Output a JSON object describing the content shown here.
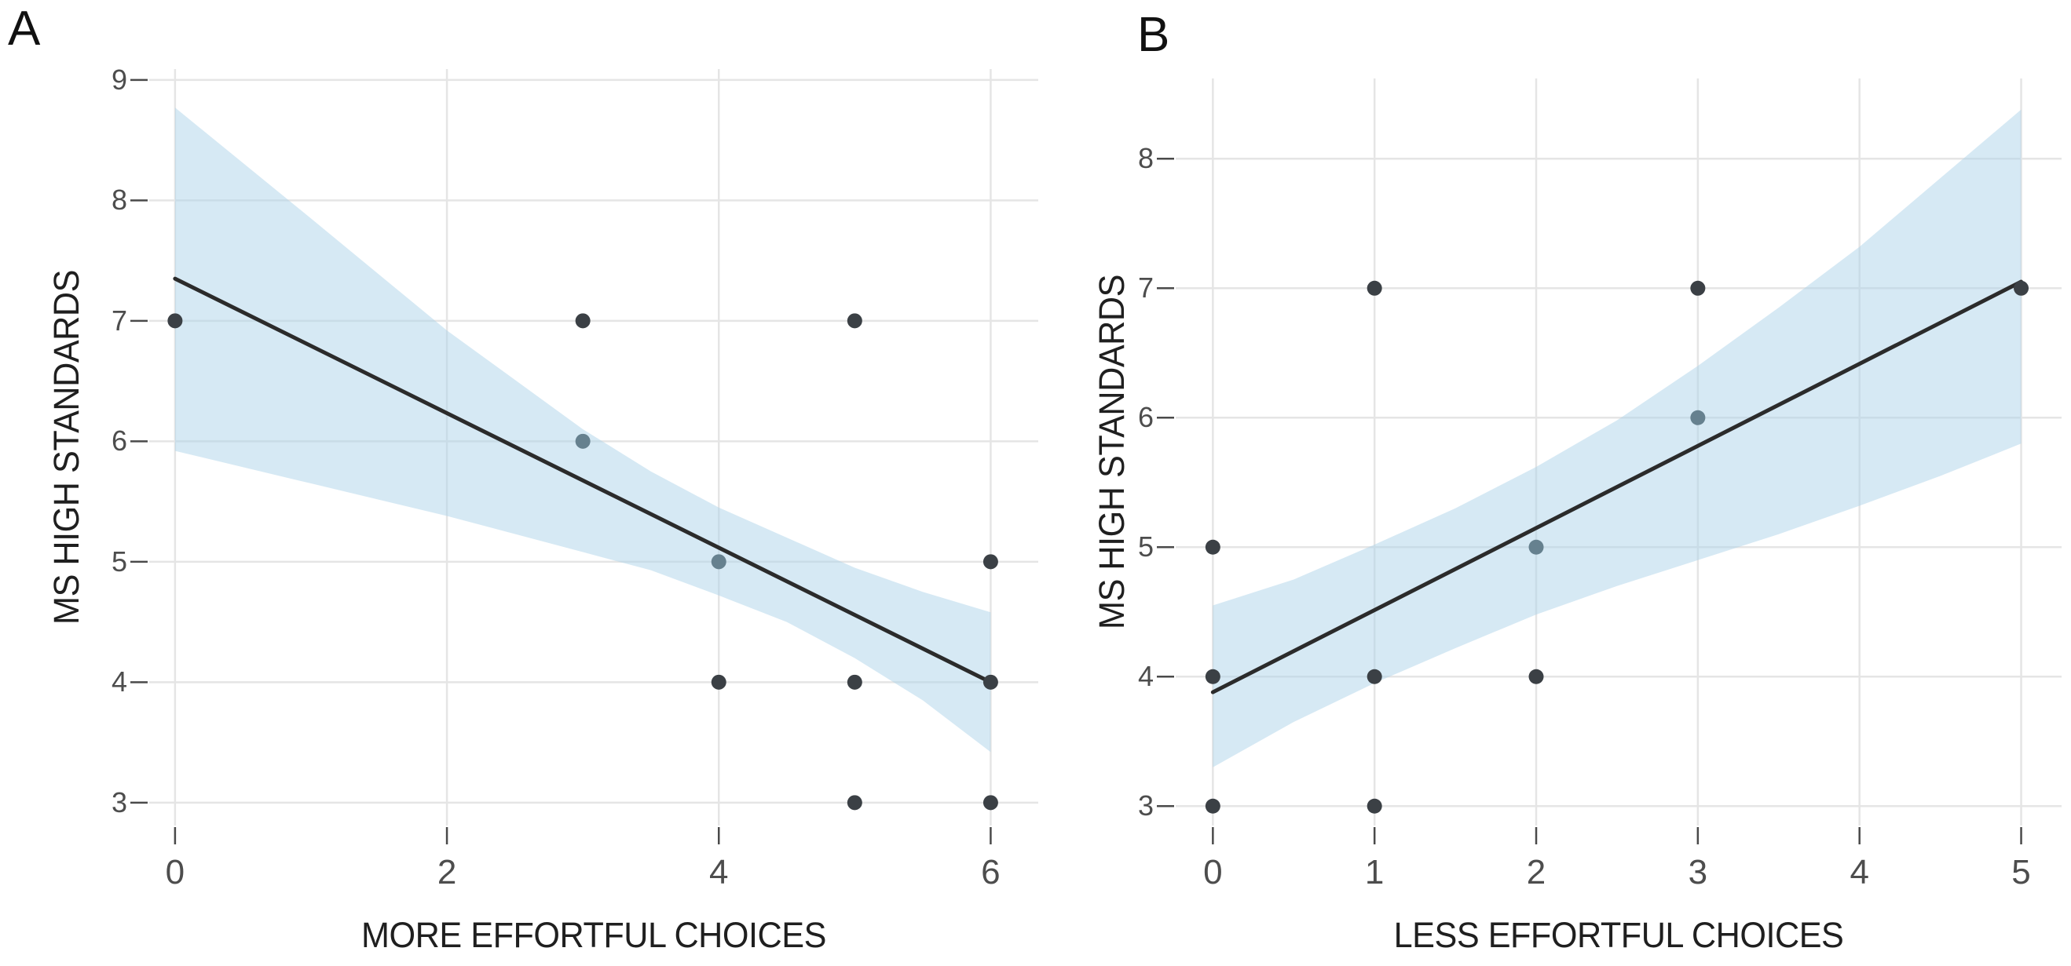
{
  "chart_data": [
    {
      "type": "scatter",
      "panel_label": "A",
      "xlabel": "MORE EFFORTFUL CHOICES",
      "ylabel": "MS HIGH STANDARDS",
      "x_ticks": [
        0,
        2,
        4,
        6
      ],
      "y_ticks": [
        3,
        4,
        5,
        6,
        7,
        8,
        9
      ],
      "xlim": [
        -0.19,
        6.35
      ],
      "ylim": [
        2.81,
        9.09
      ],
      "grid": "major-only",
      "legend_position": "none",
      "points": [
        {
          "x": 0,
          "y": 7,
          "tone": "dark"
        },
        {
          "x": 3,
          "y": 7,
          "tone": "dark"
        },
        {
          "x": 5,
          "y": 7,
          "tone": "dark"
        },
        {
          "x": 3,
          "y": 6,
          "tone": "slate"
        },
        {
          "x": 4,
          "y": 5,
          "tone": "slate"
        },
        {
          "x": 6,
          "y": 5,
          "tone": "dark"
        },
        {
          "x": 4,
          "y": 4,
          "tone": "dark"
        },
        {
          "x": 5,
          "y": 4,
          "tone": "dark"
        },
        {
          "x": 6,
          "y": 4,
          "tone": "dark"
        },
        {
          "x": 5,
          "y": 3,
          "tone": "dark"
        },
        {
          "x": 6,
          "y": 3,
          "tone": "dark"
        }
      ],
      "regression_line": {
        "x": [
          0,
          6
        ],
        "y": [
          7.35,
          4.0
        ]
      },
      "ci_ribbon": {
        "x": [
          0,
          1,
          2,
          3,
          3.5,
          4,
          4.5,
          5,
          5.5,
          6
        ],
        "upper": [
          8.77,
          7.85,
          6.92,
          6.1,
          5.75,
          5.45,
          5.2,
          4.95,
          4.75,
          4.58
        ],
        "lower": [
          5.92,
          5.65,
          5.38,
          5.08,
          4.93,
          4.72,
          4.5,
          4.2,
          3.85,
          3.42
        ]
      }
    },
    {
      "type": "scatter",
      "panel_label": "B",
      "xlabel": "LESS EFFORTFUL CHOICES",
      "ylabel": "MS HIGH STANDARDS",
      "x_ticks": [
        0,
        1,
        2,
        3,
        4,
        5
      ],
      "y_ticks": [
        3,
        4,
        5,
        6,
        7,
        8
      ],
      "xlim": [
        -0.23,
        5.25
      ],
      "ylim": [
        2.85,
        8.62
      ],
      "grid": "major-only",
      "legend_position": "none",
      "points": [
        {
          "x": 0,
          "y": 5,
          "tone": "dark"
        },
        {
          "x": 0,
          "y": 4,
          "tone": "dark"
        },
        {
          "x": 0,
          "y": 3,
          "tone": "dark"
        },
        {
          "x": 1,
          "y": 7,
          "tone": "dark"
        },
        {
          "x": 1,
          "y": 4,
          "tone": "dark"
        },
        {
          "x": 1,
          "y": 3,
          "tone": "dark"
        },
        {
          "x": 2,
          "y": 5,
          "tone": "slate"
        },
        {
          "x": 2,
          "y": 4,
          "tone": "dark"
        },
        {
          "x": 3,
          "y": 7,
          "tone": "dark"
        },
        {
          "x": 3,
          "y": 6,
          "tone": "slate"
        },
        {
          "x": 5,
          "y": 7,
          "tone": "dark"
        }
      ],
      "regression_line": {
        "x": [
          0,
          5
        ],
        "y": [
          3.88,
          7.05
        ]
      },
      "ci_ribbon": {
        "x": [
          0,
          0.5,
          1,
          1.5,
          2,
          2.5,
          3,
          3.5,
          4,
          4.5,
          5
        ],
        "upper": [
          4.55,
          4.75,
          5.02,
          5.3,
          5.62,
          5.98,
          6.4,
          6.85,
          7.32,
          7.85,
          8.38
        ],
        "lower": [
          3.3,
          3.65,
          3.95,
          4.22,
          4.48,
          4.7,
          4.9,
          5.1,
          5.32,
          5.55,
          5.8
        ]
      }
    }
  ],
  "colors": {
    "background": "#ffffff",
    "gridline": "#e5e5e5",
    "tick_mark": "#4a4a4a",
    "tick_label": "#4d4d4d",
    "axis_title": "#1f1f1f",
    "panel_label": "#111111",
    "ribbon_fill": "#aed3e9",
    "ribbon_opacity": 0.5,
    "regression_line": "#2b2b2b",
    "point_dark": "#3b4045",
    "point_slate": "#66818f"
  }
}
